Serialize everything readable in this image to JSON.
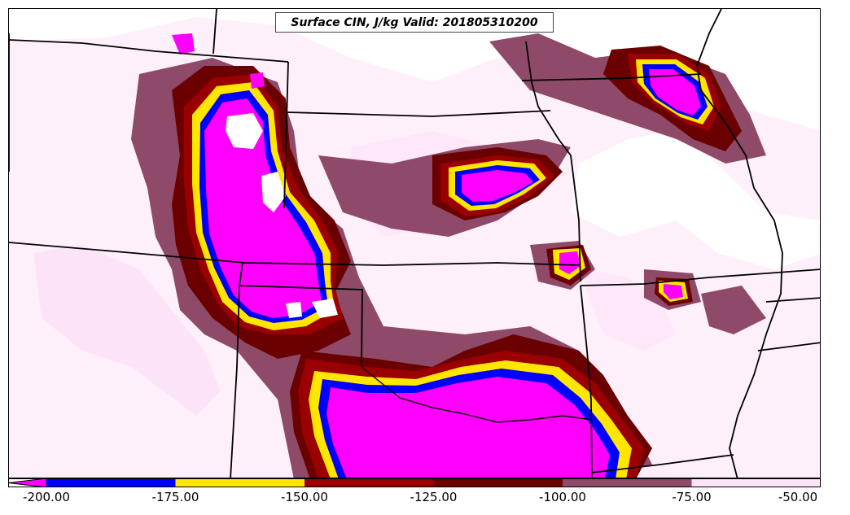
{
  "map": {
    "title": "Surface CIN, J/kg Valid: 201805310200"
  },
  "colorbar": {
    "segments": [
      {
        "from": -200,
        "to": -175,
        "color": "#0000ff"
      },
      {
        "from": -175,
        "to": -150,
        "color": "#ffe600"
      },
      {
        "from": -150,
        "to": -125,
        "color": "#9b0000"
      },
      {
        "from": -125,
        "to": -100,
        "color": "#6a0000"
      },
      {
        "from": -100,
        "to": -75,
        "color": "#8e4a68"
      },
      {
        "from": -75,
        "to": -50,
        "color": "#fde3f8"
      }
    ],
    "below_min_color": "#ff00ff",
    "tick_labels": [
      "-200.00",
      "-175.00",
      "-150.00",
      "-125.00",
      "-100.00",
      "-75.00",
      "-50.00"
    ]
  },
  "legend_colors": {
    "lt_minus200": "#ff00ff",
    "minus200_175": "#0000ff",
    "minus175_150": "#ffe600",
    "minus150_125": "#9b0000",
    "minus125_100": "#6a0000",
    "minus100_75": "#8e4a68",
    "minus75_50": "#fde3f8"
  }
}
